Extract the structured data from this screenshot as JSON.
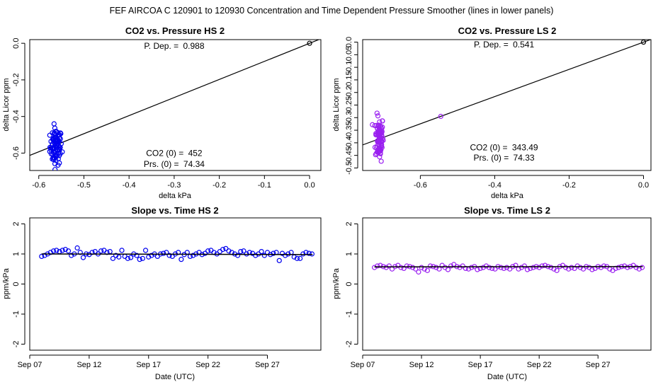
{
  "figure_title": "FEF   AIRCOA C   120901 to 120930   Concentration and Time Dependent Pressure Smoother (lines in lower panels)",
  "chart_data": [
    {
      "id": "p1",
      "type": "scatter",
      "title": "CO2 vs. Pressure HS 2",
      "xlabel": "delta kPa",
      "ylabel": "delta Licor ppm",
      "xlim": [
        -0.62,
        0.025
      ],
      "ylim": [
        -0.695,
        0.02
      ],
      "xticks": [
        -0.6,
        -0.5,
        -0.4,
        -0.3,
        -0.2,
        -0.1,
        0.0
      ],
      "xtick_labels": [
        "-0.6",
        "-0.5",
        "-0.4",
        "-0.3",
        "-0.2",
        "-0.1",
        "0.0"
      ],
      "yticks": [
        -0.6,
        -0.4,
        -0.2,
        0.0
      ],
      "ytick_labels": [
        "-0.6",
        "-0.4",
        "-0.2",
        "0.0"
      ],
      "color": "#0000ee",
      "fit_line": {
        "slope": 0.988,
        "intercept": 0.0
      },
      "reference_point": {
        "x": 0.0,
        "y": 0.0
      },
      "cluster": {
        "x_center": -0.562,
        "x_spread": 0.011,
        "y_center": -0.565,
        "y_spread": 0.05,
        "y_min": -0.69,
        "y_max": -0.42,
        "count": 90
      },
      "annotations": [
        {
          "id": "pdep",
          "label": "P. Dep. = ",
          "value": "0.988",
          "anchor_x": -0.3,
          "anchor_y": -0.015
        },
        {
          "id": "co2",
          "label": "CO2 (0) = ",
          "value": "452",
          "anchor_x": -0.3,
          "anchor_y": -0.6
        },
        {
          "id": "prs",
          "label": "Prs. (0) = ",
          "value": "74.34",
          "anchor_x": -0.3,
          "anchor_y": -0.66
        }
      ]
    },
    {
      "id": "p2",
      "type": "scatter",
      "title": "CO2 vs. Pressure LS 2",
      "xlabel": "delta kPa",
      "ylabel": "delta Licor ppm",
      "xlim": [
        -0.755,
        0.02
      ],
      "ylim": [
        -0.51,
        0.01
      ],
      "xticks": [
        -0.6,
        -0.4,
        -0.2,
        0.0
      ],
      "xtick_labels": [
        "-0.6",
        "-0.4",
        "-0.2",
        "0.0"
      ],
      "yticks": [
        -0.5,
        -0.45,
        -0.4,
        -0.35,
        -0.3,
        -0.25,
        -0.2,
        -0.15,
        -0.1,
        -0.05,
        0.0
      ],
      "ytick_labels": [
        "-0.5",
        "-0.45",
        "-0.4",
        "-0.35",
        "-0.3",
        "-0.25",
        "-0.2",
        "-0.15",
        "-0.1",
        "-0.05",
        "0.0"
      ],
      "color": "#9a20f0",
      "fit_line": {
        "slope": 0.541,
        "intercept": 0.0
      },
      "reference_point": {
        "x": 0.0,
        "y": 0.0
      },
      "outlier_point": {
        "x": -0.545,
        "y": -0.295
      },
      "cluster": {
        "x_center": -0.71,
        "x_spread": 0.009,
        "y_center": -0.38,
        "y_spread": 0.045,
        "y_min": -0.5,
        "y_max": -0.26,
        "count": 90
      },
      "annotations": [
        {
          "id": "pdep",
          "label": "P. Dep. = ",
          "value": "0.541",
          "anchor_x": -0.375,
          "anchor_y": -0.01
        },
        {
          "id": "co2",
          "label": "CO2 (0) = ",
          "value": "343.49",
          "anchor_x": -0.375,
          "anchor_y": -0.418
        },
        {
          "id": "prs",
          "label": "Prs. (0) = ",
          "value": "74.33",
          "anchor_x": -0.375,
          "anchor_y": -0.46
        }
      ]
    },
    {
      "id": "p3",
      "type": "scatter",
      "title": "Slope vs. Time HS 2",
      "xlabel": "Date (UTC)",
      "ylabel": "ppm/kPa",
      "xlim": [
        7.0,
        31.5
      ],
      "ylim": [
        -2.2,
        2.2
      ],
      "xticks": [
        7,
        12,
        17,
        22,
        27
      ],
      "xtick_labels": [
        "Sep 07",
        "Sep 12",
        "Sep 17",
        "Sep 22",
        "Sep 27"
      ],
      "yticks": [
        -2,
        -1,
        0,
        1,
        2
      ],
      "ytick_labels": [
        "-2",
        "-1",
        "0",
        "1",
        "2"
      ],
      "color": "#0000ee",
      "line_x": [
        8.0,
        30.8
      ],
      "line_y": [
        1.0,
        0.98
      ],
      "series_x_start": 8.0,
      "series_x_step": 0.25,
      "values": [
        0.92,
        0.95,
        1.0,
        1.05,
        1.1,
        1.12,
        1.08,
        1.12,
        1.15,
        1.1,
        0.95,
        1.0,
        1.2,
        1.05,
        0.88,
        1.0,
        0.98,
        1.05,
        1.08,
        1.0,
        1.1,
        1.12,
        1.05,
        1.08,
        0.85,
        0.95,
        0.9,
        1.12,
        0.92,
        0.85,
        0.88,
        1.0,
        0.95,
        0.82,
        0.85,
        1.12,
        0.9,
        0.95,
        1.0,
        0.92,
        1.0,
        1.02,
        1.05,
        0.95,
        0.92,
        1.0,
        1.05,
        0.82,
        0.98,
        1.05,
        0.92,
        0.95,
        1.0,
        1.05,
        0.98,
        1.02,
        1.1,
        1.12,
        1.05,
        1.0,
        1.08,
        1.15,
        1.18,
        1.1,
        1.05,
        1.0,
        0.95,
        1.08,
        1.1,
        1.0,
        1.05,
        1.02,
        0.95,
        1.0,
        1.08,
        0.95,
        1.05,
        0.98,
        1.02,
        1.05,
        0.78,
        1.02,
        0.95,
        1.0,
        1.05,
        0.9,
        0.85,
        0.85,
        1.0,
        1.05,
        1.02,
        1.0
      ]
    },
    {
      "id": "p4",
      "type": "scatter",
      "title": "Slope vs. Time LS 2",
      "xlabel": "Date (UTC)",
      "ylabel": "ppm/kPa",
      "xlim": [
        7.0,
        31.5
      ],
      "ylim": [
        -2.2,
        2.2
      ],
      "xticks": [
        7,
        12,
        17,
        22,
        27
      ],
      "xtick_labels": [
        "Sep 07",
        "Sep 12",
        "Sep 17",
        "Sep 22",
        "Sep 27"
      ],
      "yticks": [
        -2,
        -1,
        0,
        1,
        2
      ],
      "ytick_labels": [
        "-2",
        "-1",
        "0",
        "1",
        "2"
      ],
      "color": "#9a20f0",
      "line_x": [
        8.0,
        30.8
      ],
      "line_y": [
        0.57,
        0.58
      ],
      "series_x_start": 8.0,
      "series_x_step": 0.25,
      "values": [
        0.55,
        0.6,
        0.62,
        0.58,
        0.55,
        0.6,
        0.5,
        0.58,
        0.62,
        0.55,
        0.52,
        0.6,
        0.58,
        0.55,
        0.5,
        0.4,
        0.55,
        0.5,
        0.45,
        0.6,
        0.58,
        0.55,
        0.5,
        0.62,
        0.55,
        0.48,
        0.6,
        0.65,
        0.58,
        0.55,
        0.6,
        0.52,
        0.5,
        0.55,
        0.58,
        0.48,
        0.52,
        0.55,
        0.6,
        0.55,
        0.52,
        0.5,
        0.58,
        0.55,
        0.52,
        0.55,
        0.5,
        0.58,
        0.62,
        0.5,
        0.55,
        0.6,
        0.48,
        0.52,
        0.55,
        0.58,
        0.55,
        0.6,
        0.62,
        0.58,
        0.55,
        0.5,
        0.45,
        0.58,
        0.62,
        0.55,
        0.5,
        0.55,
        0.52,
        0.6,
        0.55,
        0.5,
        0.58,
        0.55,
        0.48,
        0.52,
        0.58,
        0.55,
        0.6,
        0.58,
        0.5,
        0.45,
        0.52,
        0.55,
        0.58,
        0.6,
        0.55,
        0.58,
        0.62,
        0.55,
        0.5,
        0.55
      ]
    }
  ]
}
